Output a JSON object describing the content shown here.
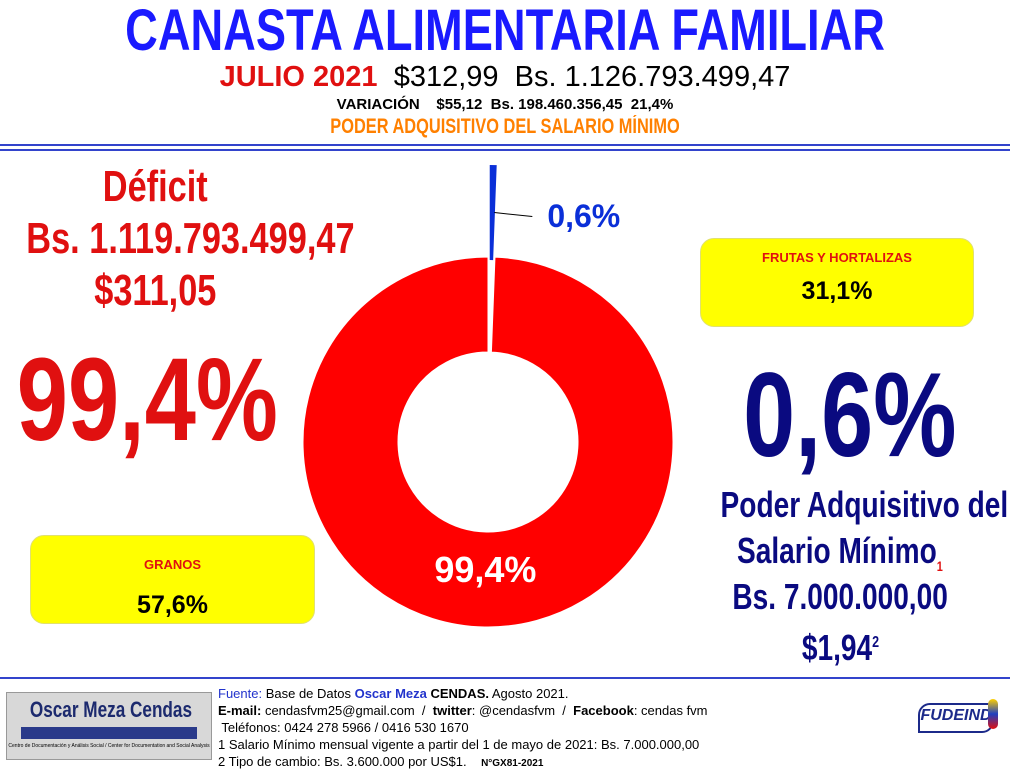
{
  "header": {
    "title": "CANASTA ALIMENTARIA FAMILIAR",
    "month": "JULIO 2021",
    "usd": "$312,99",
    "bs": "Bs. 1.126.793.499,47",
    "variation_label": "VARIACIÓN",
    "variation_usd": "$55,12",
    "variation_bs": "Bs. 198.460.356,45",
    "variation_pct": "21,4%",
    "subtitle": "PODER ADQUISITIVO DEL SALARIO MÍNIMO"
  },
  "deficit": {
    "label": "Déficit",
    "bs": "Bs. 1.119.793.499,47",
    "usd": "$311,05",
    "pct": "99,4%"
  },
  "boxes": [
    {
      "label": "FRUTAS Y HORTALIZAS",
      "value": "31,1%"
    },
    {
      "label": "GRANOS",
      "value": "57,6%"
    }
  ],
  "power": {
    "pct": "0,6%",
    "line1": "Poder Adquisitivo del",
    "line2": "Salario Mínimo",
    "note1": "1",
    "bs": "Bs. 7.000.000,00",
    "usd": "$1,94",
    "note2": "2"
  },
  "chart_data": {
    "type": "pie",
    "donut": true,
    "values": [
      0.6,
      99.4
    ],
    "value_labels": [
      "0,6%",
      "99,4%"
    ],
    "colors": [
      "#0a2fd8",
      "#ff0000"
    ]
  },
  "footer": {
    "logo": "Oscar Meza Cendas",
    "logo_sub": "Centro de Documentación y Análisis Social / Center for Documentation and Social Analysis",
    "source_prefix": "Fuente:",
    "source_text": " Base de Datos ",
    "source_name": "Oscar Meza",
    "source_org": " CENDAS.",
    "source_date": " Agosto 2021.",
    "email_label": "E-mail:",
    "email": " cendasfvm25@gmail.com  /  ",
    "twitter_label": "twitter",
    "twitter": ": @cendasfvm  /  ",
    "facebook_label": "Facebook",
    "facebook": ": cendas fvm",
    "phones": " Teléfonos: 0424 278 5966 / 0416 530 1670",
    "note1": "1 Salario Mínimo mensual vigente a partir del 1 de mayo de 2021: Bs. 7.000.000,00",
    "note2": "2 Tipo de cambio: Bs. 3.600.000 por US$1.",
    "code": "N°GX81-2021",
    "partner": "FUDEIND"
  }
}
